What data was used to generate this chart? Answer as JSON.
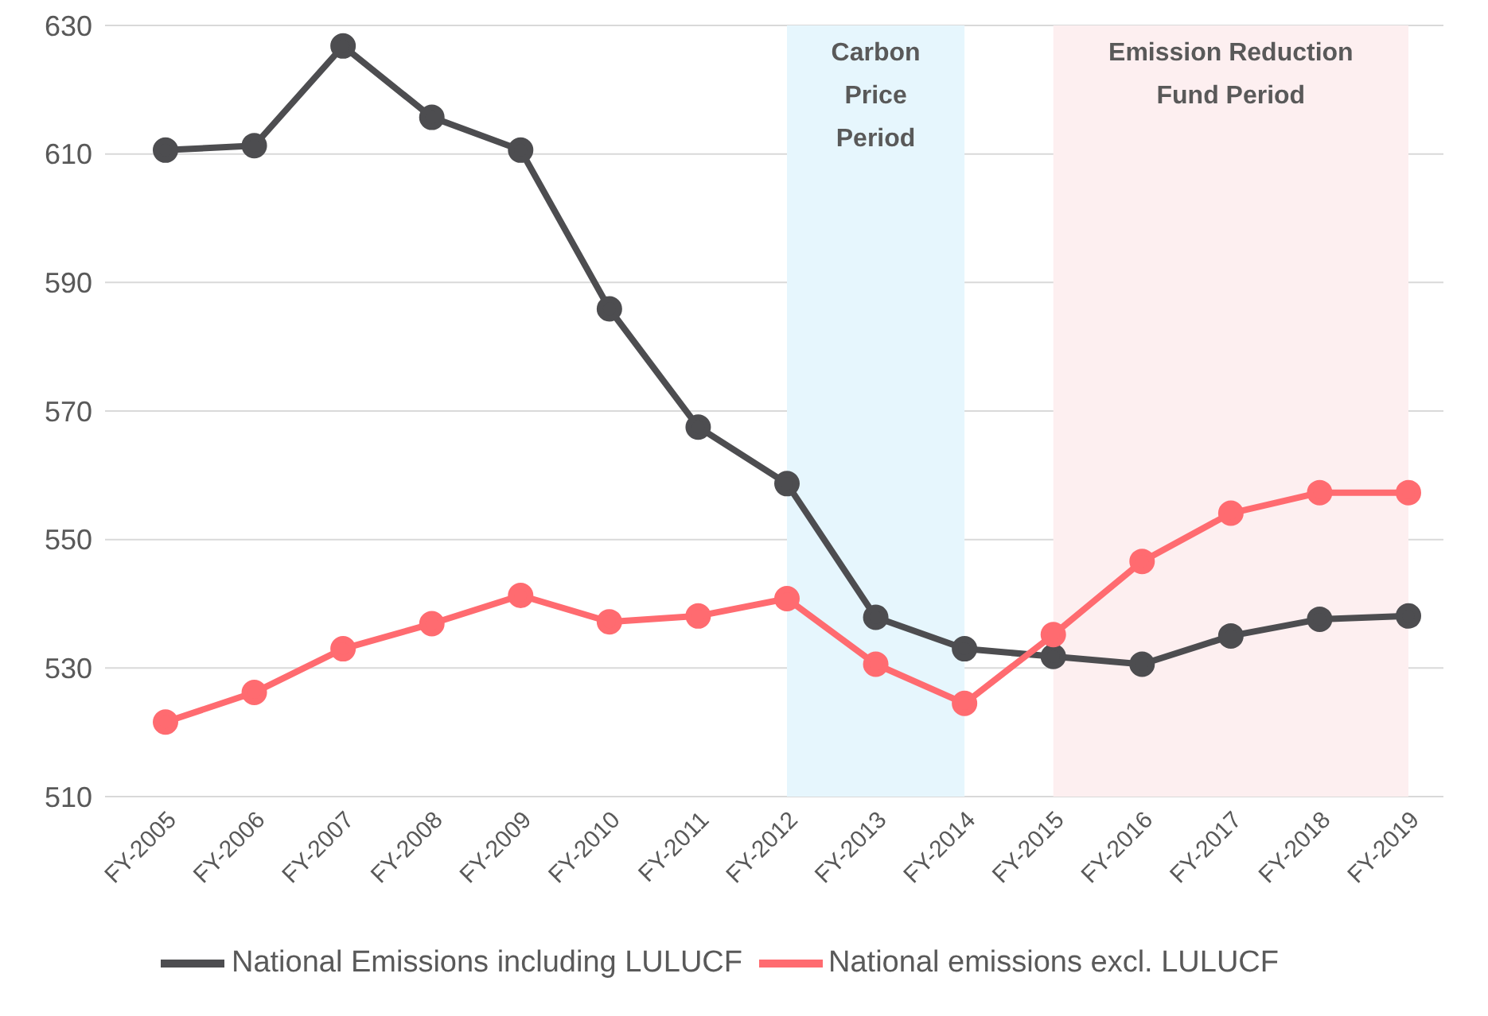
{
  "chart_data": {
    "type": "line",
    "categories": [
      "FY-2005",
      "FY-2006",
      "FY-2007",
      "FY-2008",
      "FY-2009",
      "FY-2010",
      "FY-2011",
      "FY-2012",
      "FY-2013",
      "FY-2014",
      "FY-2015",
      "FY-2016",
      "FY-2017",
      "FY-2018",
      "FY-2019"
    ],
    "series": [
      {
        "name": "National Emissions including LULUCF",
        "color": "#4d4d50",
        "values": [
          610.6,
          611.3,
          626.8,
          615.7,
          610.6,
          585.9,
          567.5,
          558.7,
          537.9,
          533.0,
          531.8,
          530.6,
          535.0,
          537.6,
          538.1
        ]
      },
      {
        "name": "National emissions excl. LULUCF",
        "color": "#ff6b70",
        "values": [
          521.6,
          526.2,
          533.0,
          536.9,
          541.3,
          537.2,
          538.1,
          540.8,
          530.6,
          524.5,
          535.2,
          546.6,
          554.1,
          557.3,
          557.3
        ]
      }
    ],
    "ylim": [
      510,
      630
    ],
    "yticks": [
      510,
      530,
      550,
      570,
      590,
      610,
      630
    ],
    "grid": "y",
    "legend": "bottom",
    "marker": "circle",
    "line_style": "solid",
    "bands": [
      {
        "axis": "x",
        "from": "FY-2012",
        "to": "FY-2014",
        "label": "Carbon Price Period",
        "color": "#e6f6fd"
      },
      {
        "axis": "x",
        "from": "FY-2015",
        "to": "FY-2019",
        "label": "Emission Reduction Fund Period",
        "color": "#fdeff0"
      }
    ]
  }
}
